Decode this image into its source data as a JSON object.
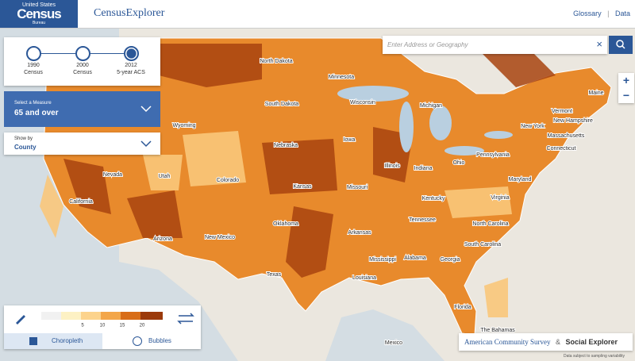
{
  "header": {
    "logo_top": "United States",
    "logo_main": "Census",
    "logo_sub": "Bureau",
    "app_title": "CensusExplorer",
    "links": [
      "Glossary",
      "Data"
    ]
  },
  "timeline": [
    {
      "year": "1990",
      "label": "Census"
    },
    {
      "year": "2000",
      "label": "Census"
    },
    {
      "year": "2012",
      "label": "5-year ACS"
    }
  ],
  "measure": {
    "caption": "Select a Measure",
    "value": "65 and over"
  },
  "show_by": {
    "caption": "Show by",
    "value": "County"
  },
  "search": {
    "placeholder": "Enter Address or Geography"
  },
  "legend": {
    "ticks": [
      "5",
      "10",
      "15",
      "20"
    ]
  },
  "tabs": [
    "Choropleth",
    "Bubbles"
  ],
  "attribution": {
    "source": "American Community Survey",
    "amp": "&",
    "partner": "Social Explorer",
    "note": "Data subject to sampling variability"
  },
  "map_labels": [
    "North Dakota",
    "Minnesota",
    "South Dakota",
    "Wisconsin",
    "Michigan",
    "Wyoming",
    "Nebraska",
    "Iowa",
    "Illinois",
    "Indiana",
    "Ohio",
    "Nevada",
    "Utah",
    "Colorado",
    "Kansas",
    "Missouri",
    "Kentucky",
    "California",
    "Arizona",
    "New Mexico",
    "Oklahoma",
    "Arkansas",
    "Tennessee",
    "North Carolina",
    "South Carolina",
    "Mississippi",
    "Alabama",
    "Georgia",
    "Louisiana",
    "Texas",
    "Florida",
    "Virginia",
    "Maryland",
    "New York",
    "Pennsylvania",
    "Vermont",
    "New Hampshire",
    "Massachusetts",
    "Connecticut",
    "Maine",
    "The Bahamas",
    "Mexico"
  ]
}
